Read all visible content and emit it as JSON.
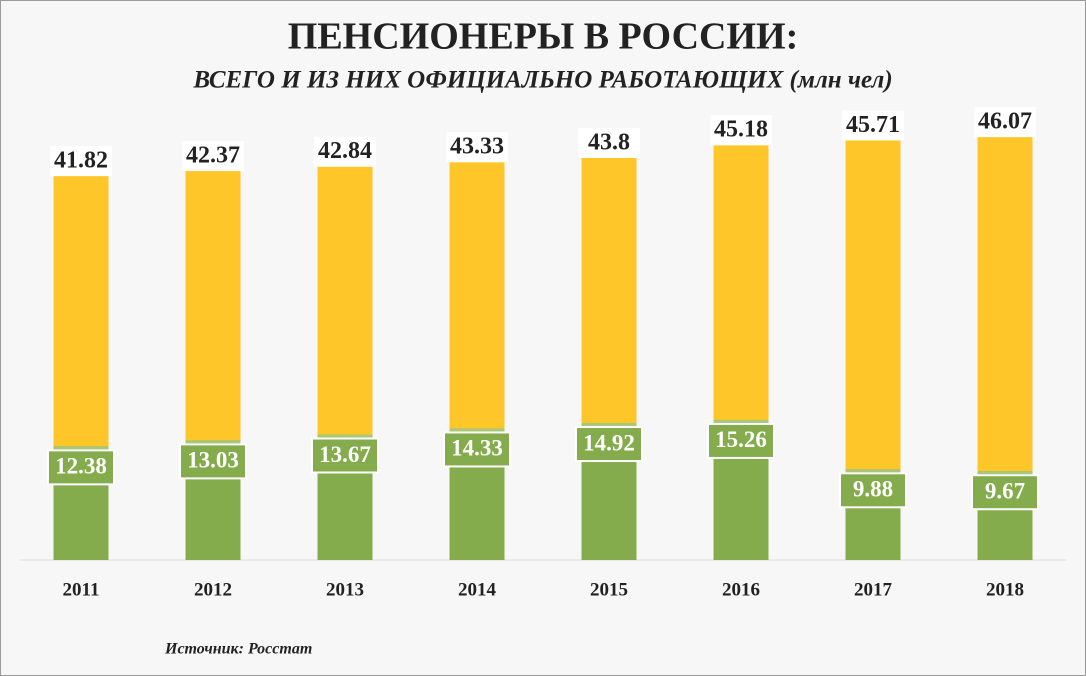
{
  "chart_data": {
    "type": "bar",
    "title": "ПЕНСИОНЕРЫ В РОССИИ:",
    "subtitle": "ВСЕГО И ИЗ НИХ ОФИЦИАЛЬНО РАБОТАЮЩИХ (млн чел)",
    "source": "Источник: Росстат",
    "categories": [
      "2011",
      "2012",
      "2013",
      "2014",
      "2015",
      "2016",
      "2017",
      "2018"
    ],
    "series": [
      {
        "color": "#ffc629",
        "values": [
          41.82,
          42.37,
          42.84,
          43.33,
          43.8,
          45.18,
          45.71,
          46.07
        ]
      },
      {
        "color": "#84ab4c",
        "values": [
          12.38,
          13.03,
          13.67,
          14.33,
          14.92,
          15.26,
          9.88,
          9.67
        ]
      }
    ],
    "ylim": [
      0,
      50
    ]
  }
}
